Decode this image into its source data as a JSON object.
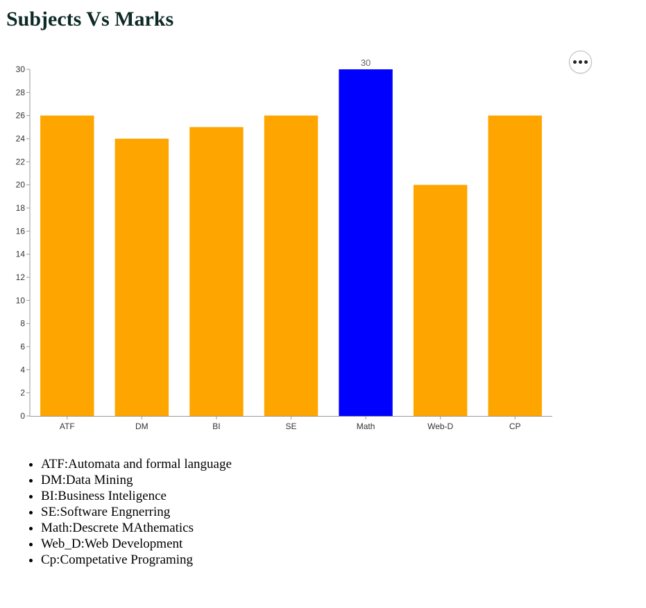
{
  "page": {
    "title": "Subjects Vs Marks",
    "menu_icon": "more-horizontal-icon"
  },
  "colors": {
    "bar_default": "#FFA500",
    "bar_highlight": "#0000FF",
    "axis": "#999999",
    "text": "#333333",
    "value_label": "#666666"
  },
  "chart_data": {
    "type": "bar",
    "title": "",
    "xlabel": "",
    "ylabel": "",
    "categories": [
      "ATF",
      "DM",
      "BI",
      "SE",
      "Math",
      "Web-D",
      "CP"
    ],
    "values": [
      26,
      24,
      25,
      26,
      30,
      20,
      26
    ],
    "ylim": [
      0,
      30
    ],
    "y_ticks": [
      0,
      2,
      4,
      6,
      8,
      10,
      12,
      14,
      16,
      18,
      20,
      22,
      24,
      26,
      28,
      30
    ],
    "highlighted_category": "Math",
    "data_labels": [
      {
        "category": "Math",
        "text": "30"
      }
    ],
    "grid": false,
    "legend": "none"
  },
  "legend_list": [
    "ATF:Automata and formal language",
    "DM:Data Mining",
    "BI:Business Inteligence",
    "SE:Software Engnerring",
    "Math:Descrete MAthematics",
    "Web_D:Web Development",
    "Cp:Competative Programing"
  ]
}
